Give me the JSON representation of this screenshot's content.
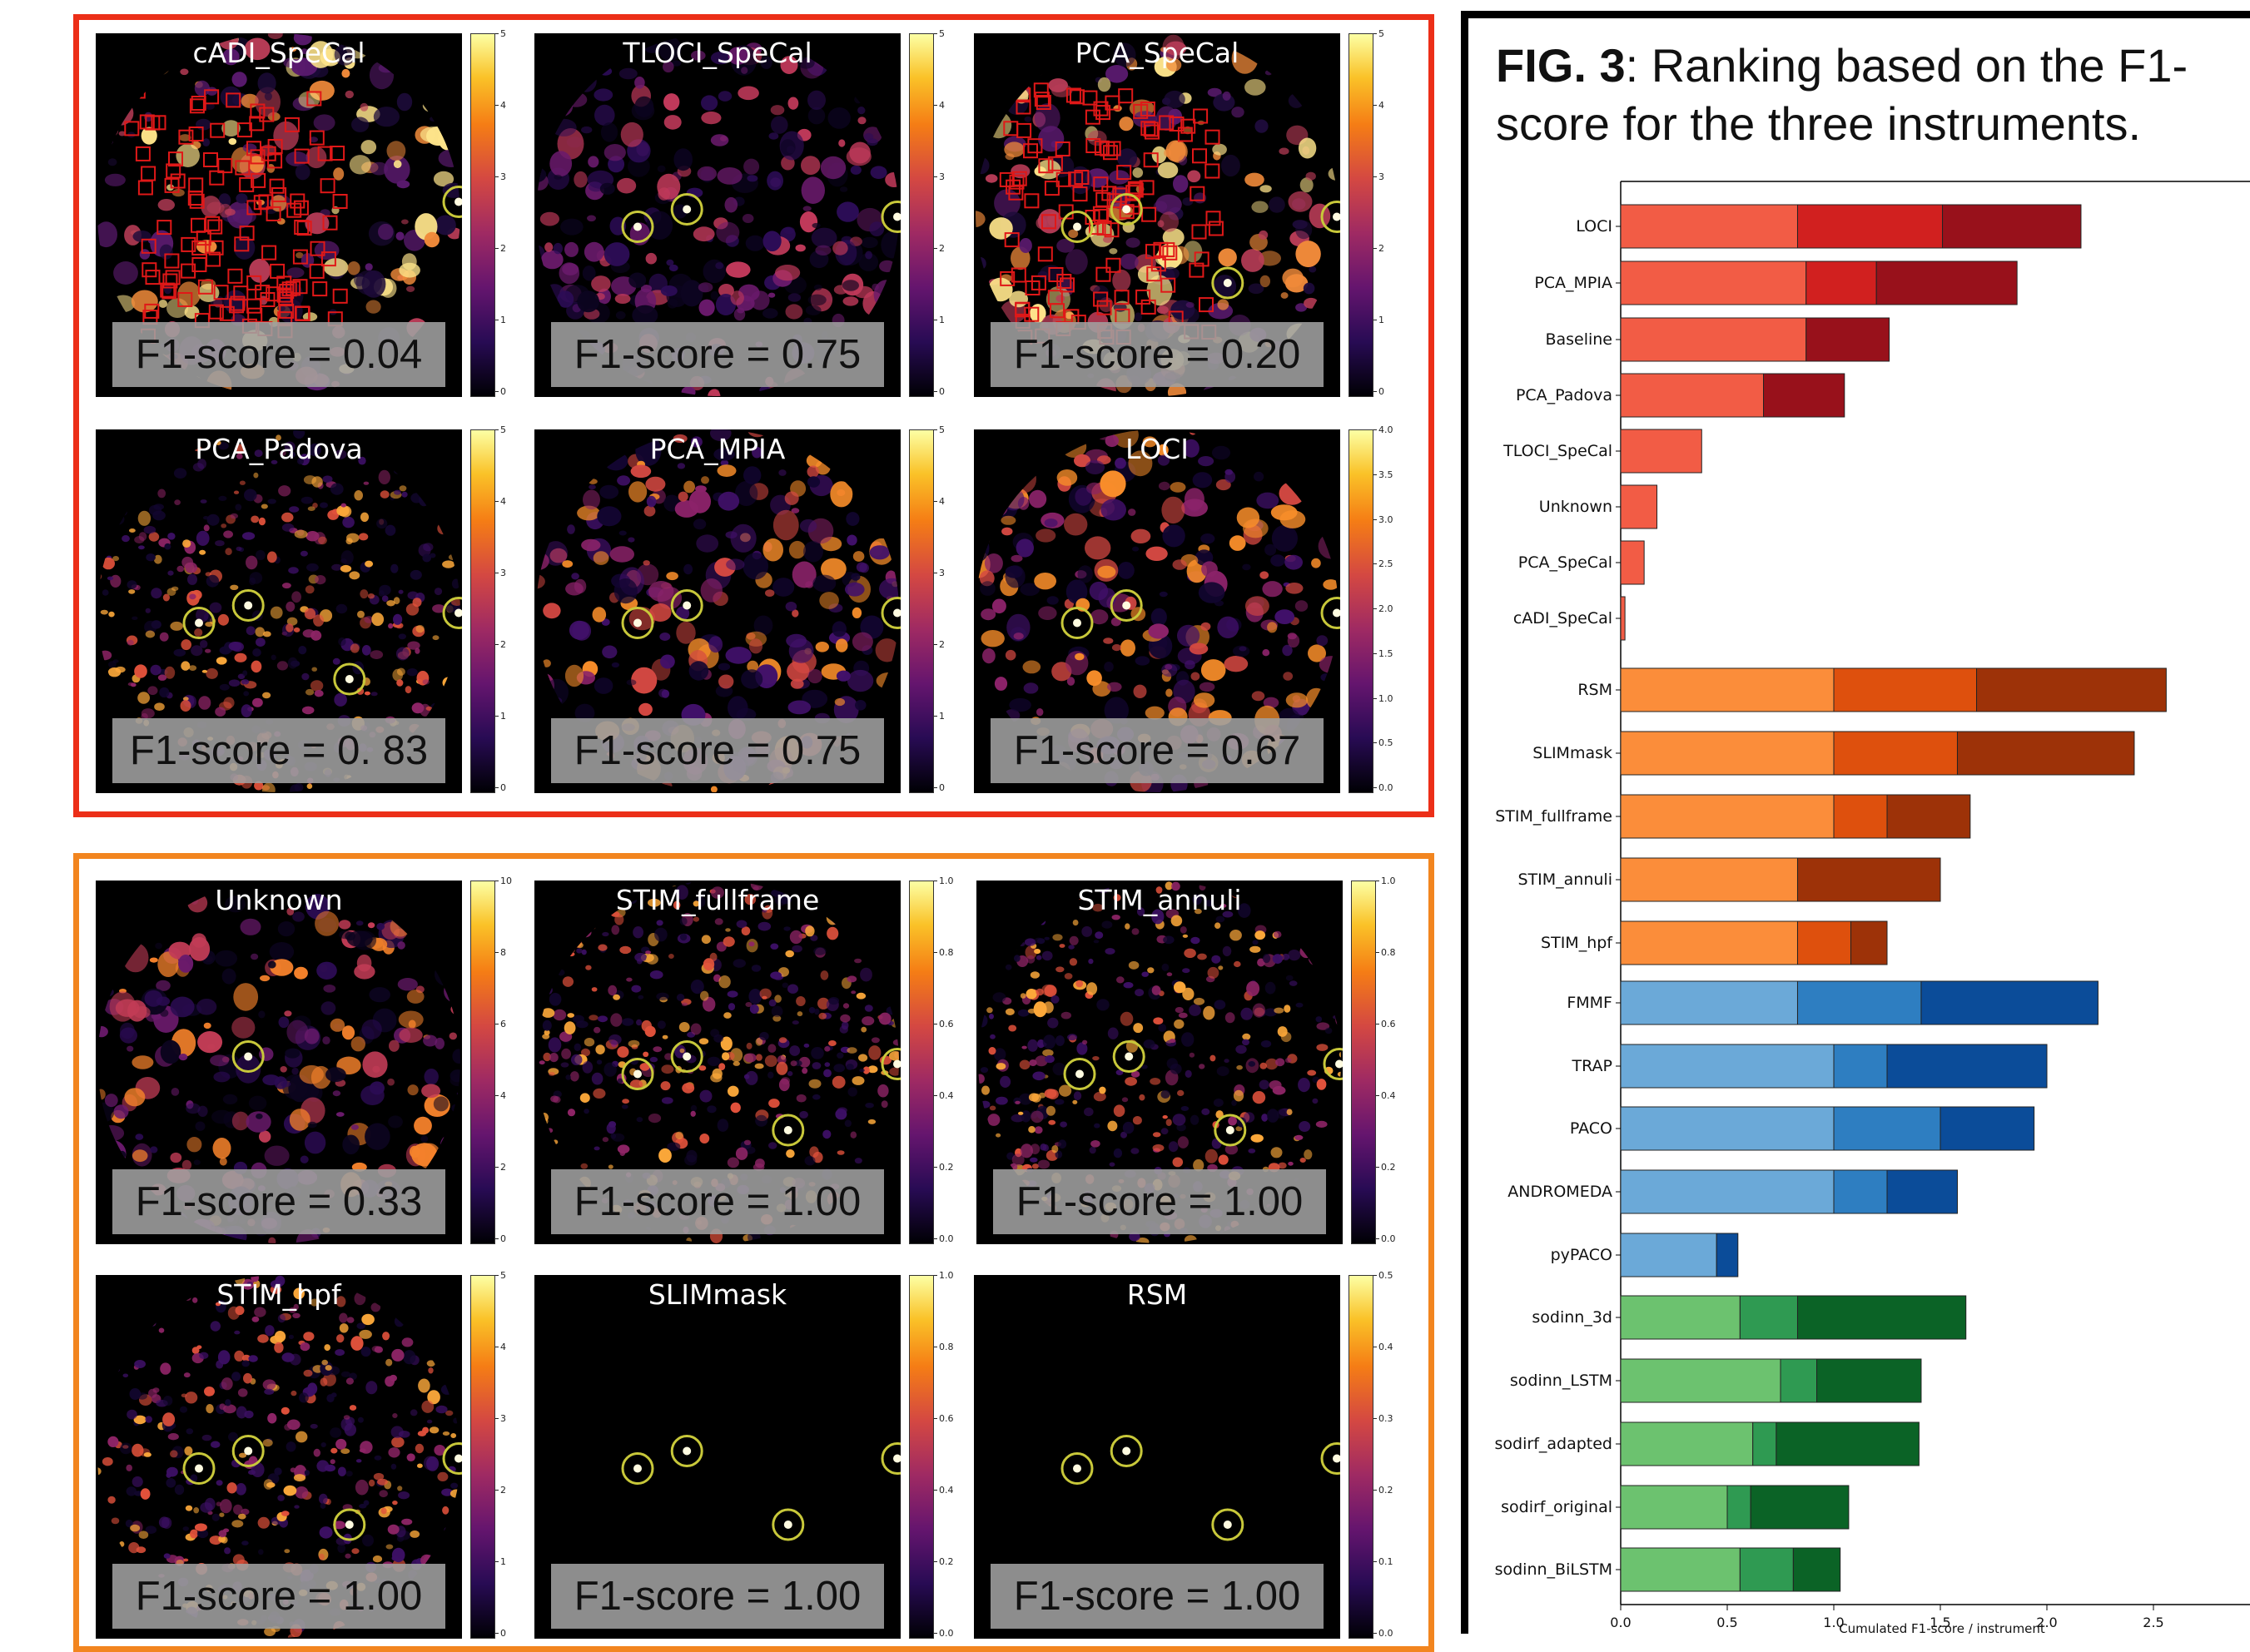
{
  "panels": [
    {
      "title": "cADI_SpeCal",
      "f1": "F1-score = 0.04",
      "ticks": [
        "5",
        "4",
        "3",
        "2",
        "1",
        "0"
      ],
      "cmap": "a",
      "circles": [
        [
          310,
          95
        ],
        [
          350,
          120
        ]
      ],
      "squares": true
    },
    {
      "title": "TLOCI_SpeCal",
      "f1": "F1-score = 0.75",
      "ticks": [
        "5",
        "4",
        "3",
        "2",
        "1",
        "0"
      ],
      "cmap": "b",
      "circles": [
        [
          115,
          115
        ],
        [
          152,
          101
        ],
        [
          310,
          107
        ]
      ]
    },
    {
      "title": "PCA_SpeCal",
      "f1": "F1-score = 0.20",
      "ticks": [
        "5",
        "4",
        "3",
        "2",
        "1",
        "0"
      ],
      "cmap": "a",
      "circles": [
        [
          115,
          115
        ],
        [
          152,
          101
        ],
        [
          310,
          107
        ],
        [
          350,
          120
        ],
        [
          228,
          160
        ]
      ],
      "squares": true
    },
    {
      "title": "PCA_Padova",
      "f1": "F1-score = 0. 83",
      "ticks": [
        "5",
        "4",
        "3",
        "2",
        "1",
        "0"
      ],
      "cmap": "c",
      "circles": [
        [
          115,
          115
        ],
        [
          152,
          101
        ],
        [
          310,
          107
        ],
        [
          350,
          120
        ],
        [
          228,
          160
        ]
      ]
    },
    {
      "title": "PCA_MPIA",
      "f1": "F1-score = 0.75",
      "ticks": [
        "5",
        "4",
        "3",
        "2",
        "1",
        "0"
      ],
      "cmap": "d",
      "circles": [
        [
          115,
          115
        ],
        [
          152,
          101
        ],
        [
          310,
          107
        ]
      ]
    },
    {
      "title": "LOCI",
      "f1": "F1-score = 0.67",
      "ticks": [
        "4.0",
        "3.5",
        "3.0",
        "2.5",
        "2.0",
        "1.5",
        "1.0",
        "0.5",
        "0.0"
      ],
      "cmap": "d",
      "circles": [
        [
          115,
          115
        ],
        [
          152,
          101
        ],
        [
          310,
          107
        ]
      ]
    },
    {
      "title": "Unknown",
      "f1": "F1-score = 0.33",
      "ticks": [
        "10",
        "8",
        "6",
        "4",
        "2",
        "0"
      ],
      "cmap": "e",
      "circles": [
        [
          152,
          101
        ]
      ]
    },
    {
      "title": "STIM_fullframe",
      "f1": "F1-score = 1.00",
      "ticks": [
        "1.0",
        "0.8",
        "0.6",
        "0.4",
        "0.2",
        "0.0"
      ],
      "cmap": "c",
      "circles": [
        [
          115,
          115
        ],
        [
          152,
          101
        ],
        [
          310,
          107
        ],
        [
          350,
          120
        ],
        [
          228,
          160
        ]
      ]
    },
    {
      "title": "STIM_annuli",
      "f1": "F1-score = 1.00",
      "ticks": [
        "1.0",
        "0.8",
        "0.6",
        "0.4",
        "0.2",
        "0.0"
      ],
      "cmap": "c",
      "circles": [
        [
          115,
          115
        ],
        [
          152,
          101
        ],
        [
          310,
          107
        ],
        [
          350,
          120
        ],
        [
          228,
          160
        ]
      ]
    },
    {
      "title": "STIM_hpf",
      "f1": "F1-score = 1.00",
      "ticks": [
        "5",
        "4",
        "3",
        "2",
        "1",
        "0"
      ],
      "cmap": "c",
      "circles": [
        [
          115,
          115
        ],
        [
          152,
          101
        ],
        [
          310,
          107
        ],
        [
          350,
          120
        ],
        [
          228,
          160
        ]
      ]
    },
    {
      "title": "SLIMmask",
      "f1": "F1-score = 1.00",
      "ticks": [
        "1.0",
        "0.8",
        "0.6",
        "0.4",
        "0.2",
        "0.0"
      ],
      "cmap": "f",
      "circles": [
        [
          115,
          115
        ],
        [
          152,
          101
        ],
        [
          310,
          107
        ],
        [
          350,
          120
        ],
        [
          228,
          160
        ]
      ]
    },
    {
      "title": "RSM",
      "f1": "F1-score = 1.00",
      "ticks": [
        "0.5",
        "0.4",
        "0.3",
        "0.2",
        "0.1",
        "0.0"
      ],
      "cmap": "f",
      "circles": [
        [
          115,
          115
        ],
        [
          152,
          101
        ],
        [
          310,
          107
        ],
        [
          350,
          120
        ],
        [
          228,
          160
        ]
      ]
    }
  ],
  "caption": {
    "bold": "FIG. 3",
    "rest": ": Ranking based on the F1-score for the three instruments."
  },
  "chart_data": {
    "type": "bar",
    "orientation": "horizontal-stacked",
    "xlabel": "Cumulated F1-score / instrument",
    "xlim": [
      0,
      2.65
    ],
    "xticks": [
      "0.0",
      "0.5",
      "1.0",
      "1.5",
      "2.0",
      "2.5"
    ],
    "categories": [
      "LOCI",
      "PCA_MPIA",
      "Baseline",
      "PCA_Padova",
      "TLOCI_SpeCal",
      "Unknown",
      "PCA_SpeCal",
      "cADI_SpeCal",
      "RSM",
      "SLIMmask",
      "STIM_fullframe",
      "STIM_annuli",
      "STIM_hpf",
      "FMMF",
      "TRAP",
      "PACO",
      "ANDROMEDA",
      "pyPACO",
      "sodinn_3d",
      "sodinn_LSTM",
      "sodirf_adapted",
      "sodirf_original",
      "sodinn_BiLSTM"
    ],
    "segments": [
      [
        0.83,
        0.68,
        0.65
      ],
      [
        0.87,
        0.33,
        0.66
      ],
      [
        0.87,
        0,
        0.39
      ],
      [
        0.67,
        0,
        0.38
      ],
      [
        0.38,
        0,
        0
      ],
      [
        0.17,
        0,
        0
      ],
      [
        0.11,
        0,
        0
      ],
      [
        0.02,
        0,
        0
      ],
      [
        1.0,
        0.67,
        0.89
      ],
      [
        1.0,
        0.58,
        0.83
      ],
      [
        1.0,
        0.25,
        0.39
      ],
      [
        0.83,
        0,
        0.67
      ],
      [
        0.83,
        0.25,
        0.17
      ],
      [
        0.83,
        0.58,
        0.83
      ],
      [
        1.0,
        0.25,
        0.75
      ],
      [
        1.0,
        0.5,
        0.44
      ],
      [
        1.0,
        0.25,
        0.33
      ],
      [
        0.45,
        0,
        0.1
      ],
      [
        0.56,
        0.27,
        0.79
      ],
      [
        0.75,
        0.17,
        0.49
      ],
      [
        0.62,
        0.11,
        0.67
      ],
      [
        0.5,
        0.11,
        0.46
      ],
      [
        0.56,
        0.25,
        0.22
      ]
    ],
    "group_colors": {
      "red": [
        "#f25c45",
        "#d1201f",
        "#98111b"
      ],
      "orange": [
        "#fb8d3a",
        "#de500d",
        "#9d3208"
      ],
      "blue": [
        "#6ba9d8",
        "#2e7ec1",
        "#0b4c99"
      ],
      "green": [
        "#6cc26f",
        "#2f9a52",
        "#0b6326"
      ]
    }
  }
}
